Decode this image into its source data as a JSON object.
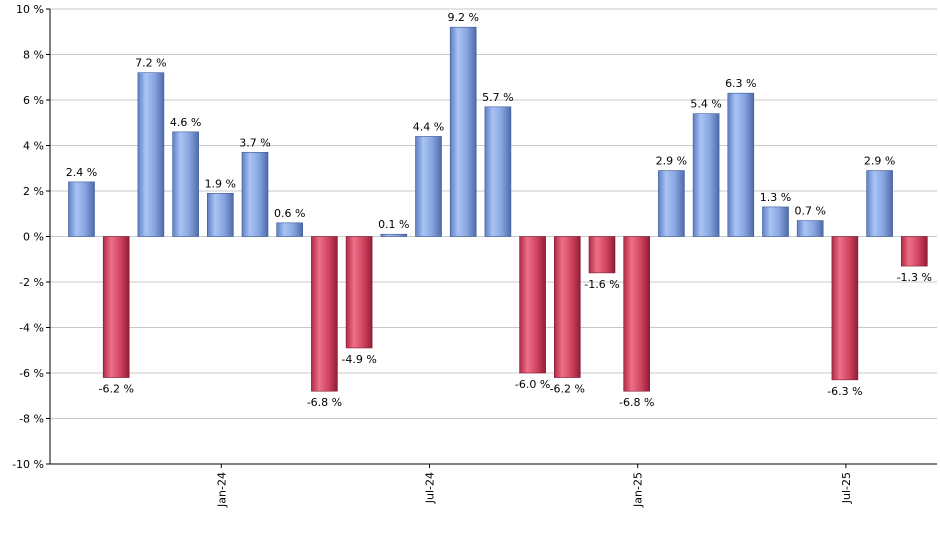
{
  "chart_data": {
    "type": "bar",
    "title": "",
    "xlabel": "",
    "ylabel": "",
    "ylim": [
      -10,
      10
    ],
    "yticks": [
      -10,
      -8,
      -6,
      -4,
      -2,
      0,
      2,
      4,
      6,
      8,
      10
    ],
    "ytick_labels": [
      "-10 %",
      "-8 %",
      "-6 %",
      "-4 %",
      "-2 %",
      "0 %",
      "2 %",
      "4 %",
      "6 %",
      "8 %",
      "10 %"
    ],
    "grid": "horizontal",
    "legend": "none",
    "xtick_labels": [
      {
        "label": "Jan-24",
        "bar_index": 4
      },
      {
        "label": "Jul-24",
        "bar_index": 10
      },
      {
        "label": "Jan-25",
        "bar_index": 16
      },
      {
        "label": "Jul-25",
        "bar_index": 22
      }
    ],
    "values": [
      2.4,
      -6.2,
      7.2,
      4.6,
      1.9,
      3.7,
      0.6,
      -6.8,
      -4.9,
      0.1,
      4.4,
      9.2,
      5.7,
      -6.0,
      -6.2,
      -1.6,
      -6.8,
      2.9,
      5.4,
      6.3,
      1.3,
      0.7,
      -6.3,
      2.9,
      -1.3
    ],
    "value_labels": [
      "2.4 %",
      "-6.2 %",
      "7.2 %",
      "4.6 %",
      "1.9 %",
      "3.7 %",
      "0.6 %",
      "-6.8 %",
      "-4.9 %",
      "0.1 %",
      "4.4 %",
      "9.2 %",
      "5.7 %",
      "-6.0 %",
      "-6.2 %",
      "-1.6 %",
      "-6.8 %",
      "2.9 %",
      "5.4 %",
      "6.3 %",
      "1.3 %",
      "0.7 %",
      "-6.3 %",
      "2.9 %",
      "-1.3 %"
    ],
    "colors": {
      "positive": "#7f9fdc",
      "negative": "#c8364f",
      "grid": "#c8c8c8",
      "axis": "#000000"
    }
  }
}
